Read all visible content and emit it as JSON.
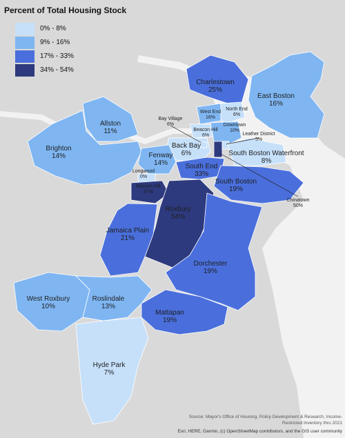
{
  "title": "Percent of Total Housing Stock",
  "legend": [
    {
      "label": "0% - 8%",
      "color": "#c6e0fa"
    },
    {
      "label": "9% - 16%",
      "color": "#7fb6f2"
    },
    {
      "label": "17% - 33%",
      "color": "#4a6fdc"
    },
    {
      "label": "34% - 54%",
      "color": "#2e3a7e"
    }
  ],
  "neighborhoods": [
    {
      "name": "Charlestown",
      "value": "25%",
      "cls": 2
    },
    {
      "name": "East Boston",
      "value": "16%",
      "cls": 1
    },
    {
      "name": "Allston",
      "value": "11%",
      "cls": 1
    },
    {
      "name": "Brighton",
      "value": "14%",
      "cls": 1
    },
    {
      "name": "West End",
      "value": "16%",
      "cls": 1
    },
    {
      "name": "North End",
      "value": "6%",
      "cls": 0
    },
    {
      "name": "Beacon Hill",
      "value": "6%",
      "cls": 0
    },
    {
      "name": "Downtown",
      "value": "10%",
      "cls": 1
    },
    {
      "name": "Bay Village",
      "value": "6%",
      "cls": 0
    },
    {
      "name": "Leather District",
      "value": "5%",
      "cls": 0
    },
    {
      "name": "Back Bay",
      "value": "6%",
      "cls": 0
    },
    {
      "name": "South Boston Waterfront",
      "value": "8%",
      "cls": 0
    },
    {
      "name": "Fenway",
      "value": "14%",
      "cls": 1
    },
    {
      "name": "South End",
      "value": "33%",
      "cls": 2
    },
    {
      "name": "Longwood",
      "value": "0%",
      "cls": 0
    },
    {
      "name": "Mission Hill",
      "value": "37%",
      "cls": 3
    },
    {
      "name": "South Boston",
      "value": "19%",
      "cls": 2
    },
    {
      "name": "Chinatown",
      "value": "50%",
      "cls": 3
    },
    {
      "name": "Roxbury",
      "value": "54%",
      "cls": 3
    },
    {
      "name": "Jamaica Plain",
      "value": "21%",
      "cls": 2
    },
    {
      "name": "Dorchester",
      "value": "19%",
      "cls": 2
    },
    {
      "name": "West Roxbury",
      "value": "10%",
      "cls": 1
    },
    {
      "name": "Roslindale",
      "value": "13%",
      "cls": 1
    },
    {
      "name": "Mattapan",
      "value": "19%",
      "cls": 2
    },
    {
      "name": "Hyde Park",
      "value": "7%",
      "cls": 0
    }
  ],
  "source": "Source: Mayor's Office of Housing, Policy Development & Research, Income-Restricted Inventory thru 2021",
  "attribution": "Esri, HERE, Garmin, (c) OpenStreetMap contributors, and the GIS user community"
}
